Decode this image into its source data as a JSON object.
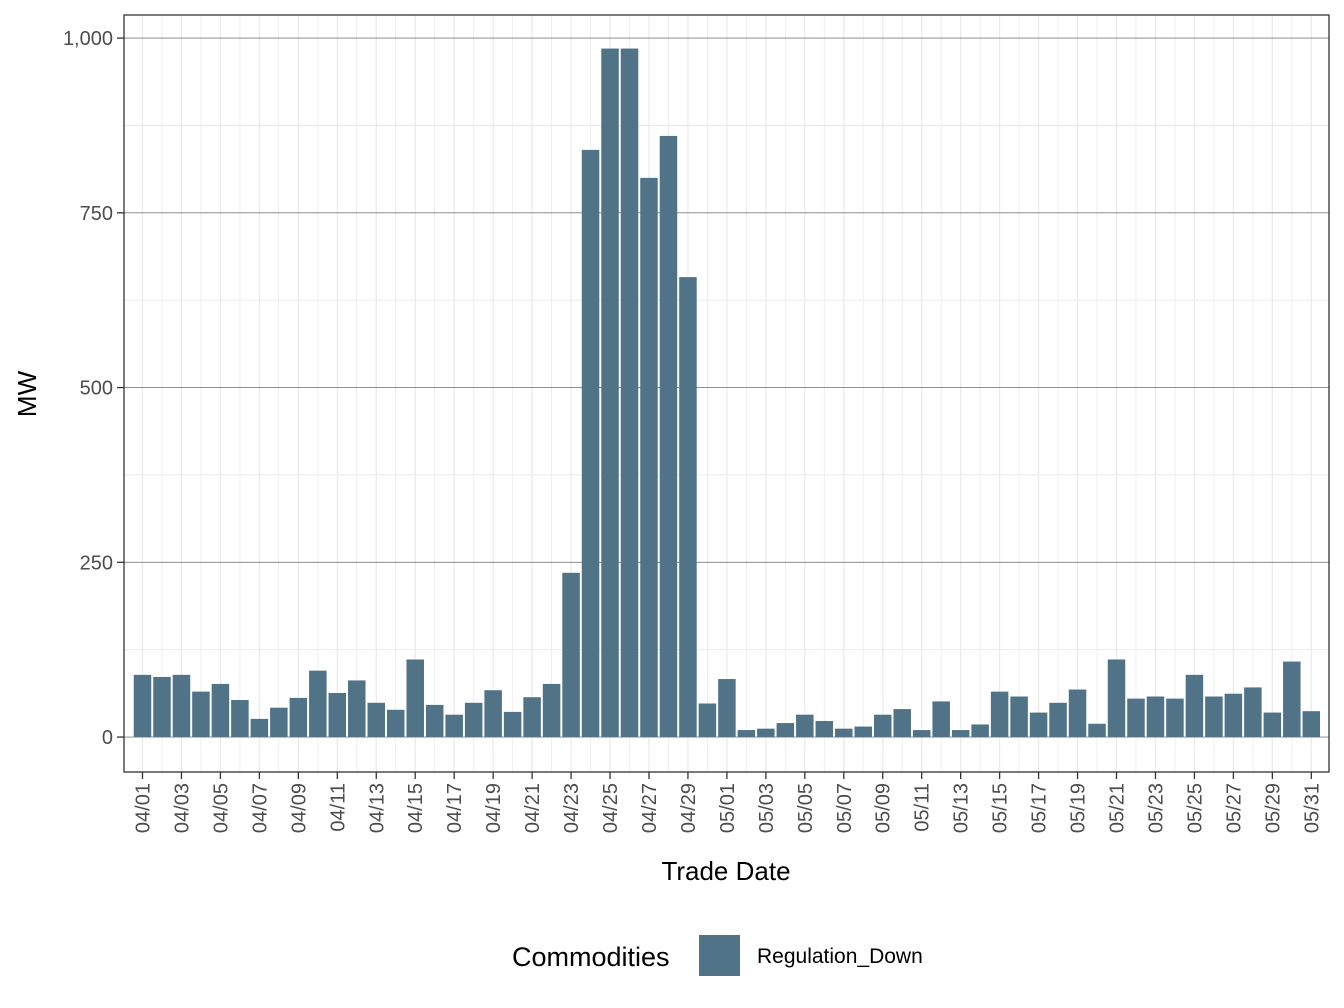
{
  "chart_data": {
    "type": "bar",
    "xlabel": "Trade Date",
    "ylabel": "MW",
    "ylim": [
      -50,
      1033
    ],
    "y_ticks": [
      0,
      250,
      500,
      750,
      1000
    ],
    "y_tick_labels": [
      "0",
      "250",
      "500",
      "750",
      "1,000"
    ],
    "grid": true,
    "legend_position": "bottom",
    "legend_title": "Commodities",
    "categories": [
      "04/01",
      "04/02",
      "04/03",
      "04/04",
      "04/05",
      "04/06",
      "04/07",
      "04/08",
      "04/09",
      "04/10",
      "04/11",
      "04/12",
      "04/13",
      "04/14",
      "04/15",
      "04/16",
      "04/17",
      "04/18",
      "04/19",
      "04/20",
      "04/21",
      "04/22",
      "04/23",
      "04/24",
      "04/25",
      "04/26",
      "04/27",
      "04/28",
      "04/29",
      "04/30",
      "05/01",
      "05/02",
      "05/03",
      "05/04",
      "05/05",
      "05/06",
      "05/07",
      "05/08",
      "05/09",
      "05/10",
      "05/11",
      "05/12",
      "05/13",
      "05/14",
      "05/15",
      "05/16",
      "05/17",
      "05/18",
      "05/19",
      "05/20",
      "05/21",
      "05/22",
      "05/23",
      "05/24",
      "05/25",
      "05/26",
      "05/27",
      "05/28",
      "05/29",
      "05/30",
      "05/31"
    ],
    "tick_labels": [
      "04/01",
      "04/03",
      "04/05",
      "04/07",
      "04/09",
      "04/11",
      "04/13",
      "04/15",
      "04/17",
      "04/19",
      "04/21",
      "04/23",
      "04/25",
      "04/27",
      "04/29",
      "05/01",
      "05/03",
      "05/05",
      "05/07",
      "05/09",
      "05/11",
      "05/13",
      "05/15",
      "05/17",
      "05/19",
      "05/21",
      "05/23",
      "05/25",
      "05/27",
      "05/29",
      "05/31"
    ],
    "series": [
      {
        "name": "Regulation_Down",
        "color": "#517387",
        "values": [
          89,
          86,
          89,
          65,
          76,
          53,
          26,
          42,
          56,
          95,
          63,
          81,
          49,
          39,
          111,
          46,
          32,
          49,
          67,
          36,
          57,
          76,
          235,
          840,
          985,
          985,
          800,
          860,
          658,
          48,
          83,
          10,
          12,
          20,
          32,
          23,
          12,
          15,
          32,
          40,
          10,
          51,
          10,
          18,
          65,
          58,
          35,
          49,
          68,
          19,
          111,
          55,
          58,
          55,
          89,
          58,
          62,
          71,
          35,
          108,
          37
        ]
      }
    ]
  }
}
